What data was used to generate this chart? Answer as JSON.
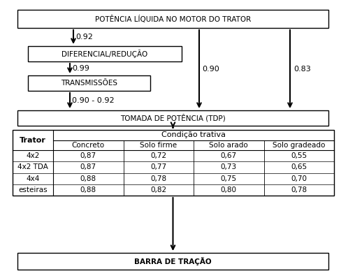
{
  "bg_color": "#ffffff",
  "box1_text": "POTÊNCIA LÍQUIDA NO MOTOR DO TRATOR",
  "box2_text": "DIFERENCIAL/REDUÇÃO",
  "box3_text": "TRANSMISSÕES",
  "box4_text": "TOMADA DE POTÊNCIA (TDP)",
  "box5_text": "BARRA DE TRAÇÃO",
  "arrow1_label": "0.92",
  "arrow2_label": "0.99",
  "arrow3_label": "0.90 - 0.92",
  "arrow4_label": "0.90",
  "arrow5_label": "0.83",
  "table_header_main": "Condição trativa",
  "table_col0_header": "Trator",
  "table_col_headers": [
    "Concreto",
    "Solo firme",
    "Solo arado",
    "Solo gradeado"
  ],
  "table_rows": [
    [
      "4x2",
      "0,87",
      "0,72",
      "0,67",
      "0,55"
    ],
    [
      "4x2 TDA",
      "0,87",
      "0,77",
      "0,73",
      "0,65"
    ],
    [
      "4x4",
      "0,88",
      "0,78",
      "0,75",
      "0,70"
    ],
    [
      "esteiras",
      "0,88",
      "0,82",
      "0,80",
      "0,78"
    ]
  ],
  "font_size_box": 7.5,
  "font_size_label": 8,
  "font_size_table": 7.5,
  "font_size_table_hdr": 8
}
